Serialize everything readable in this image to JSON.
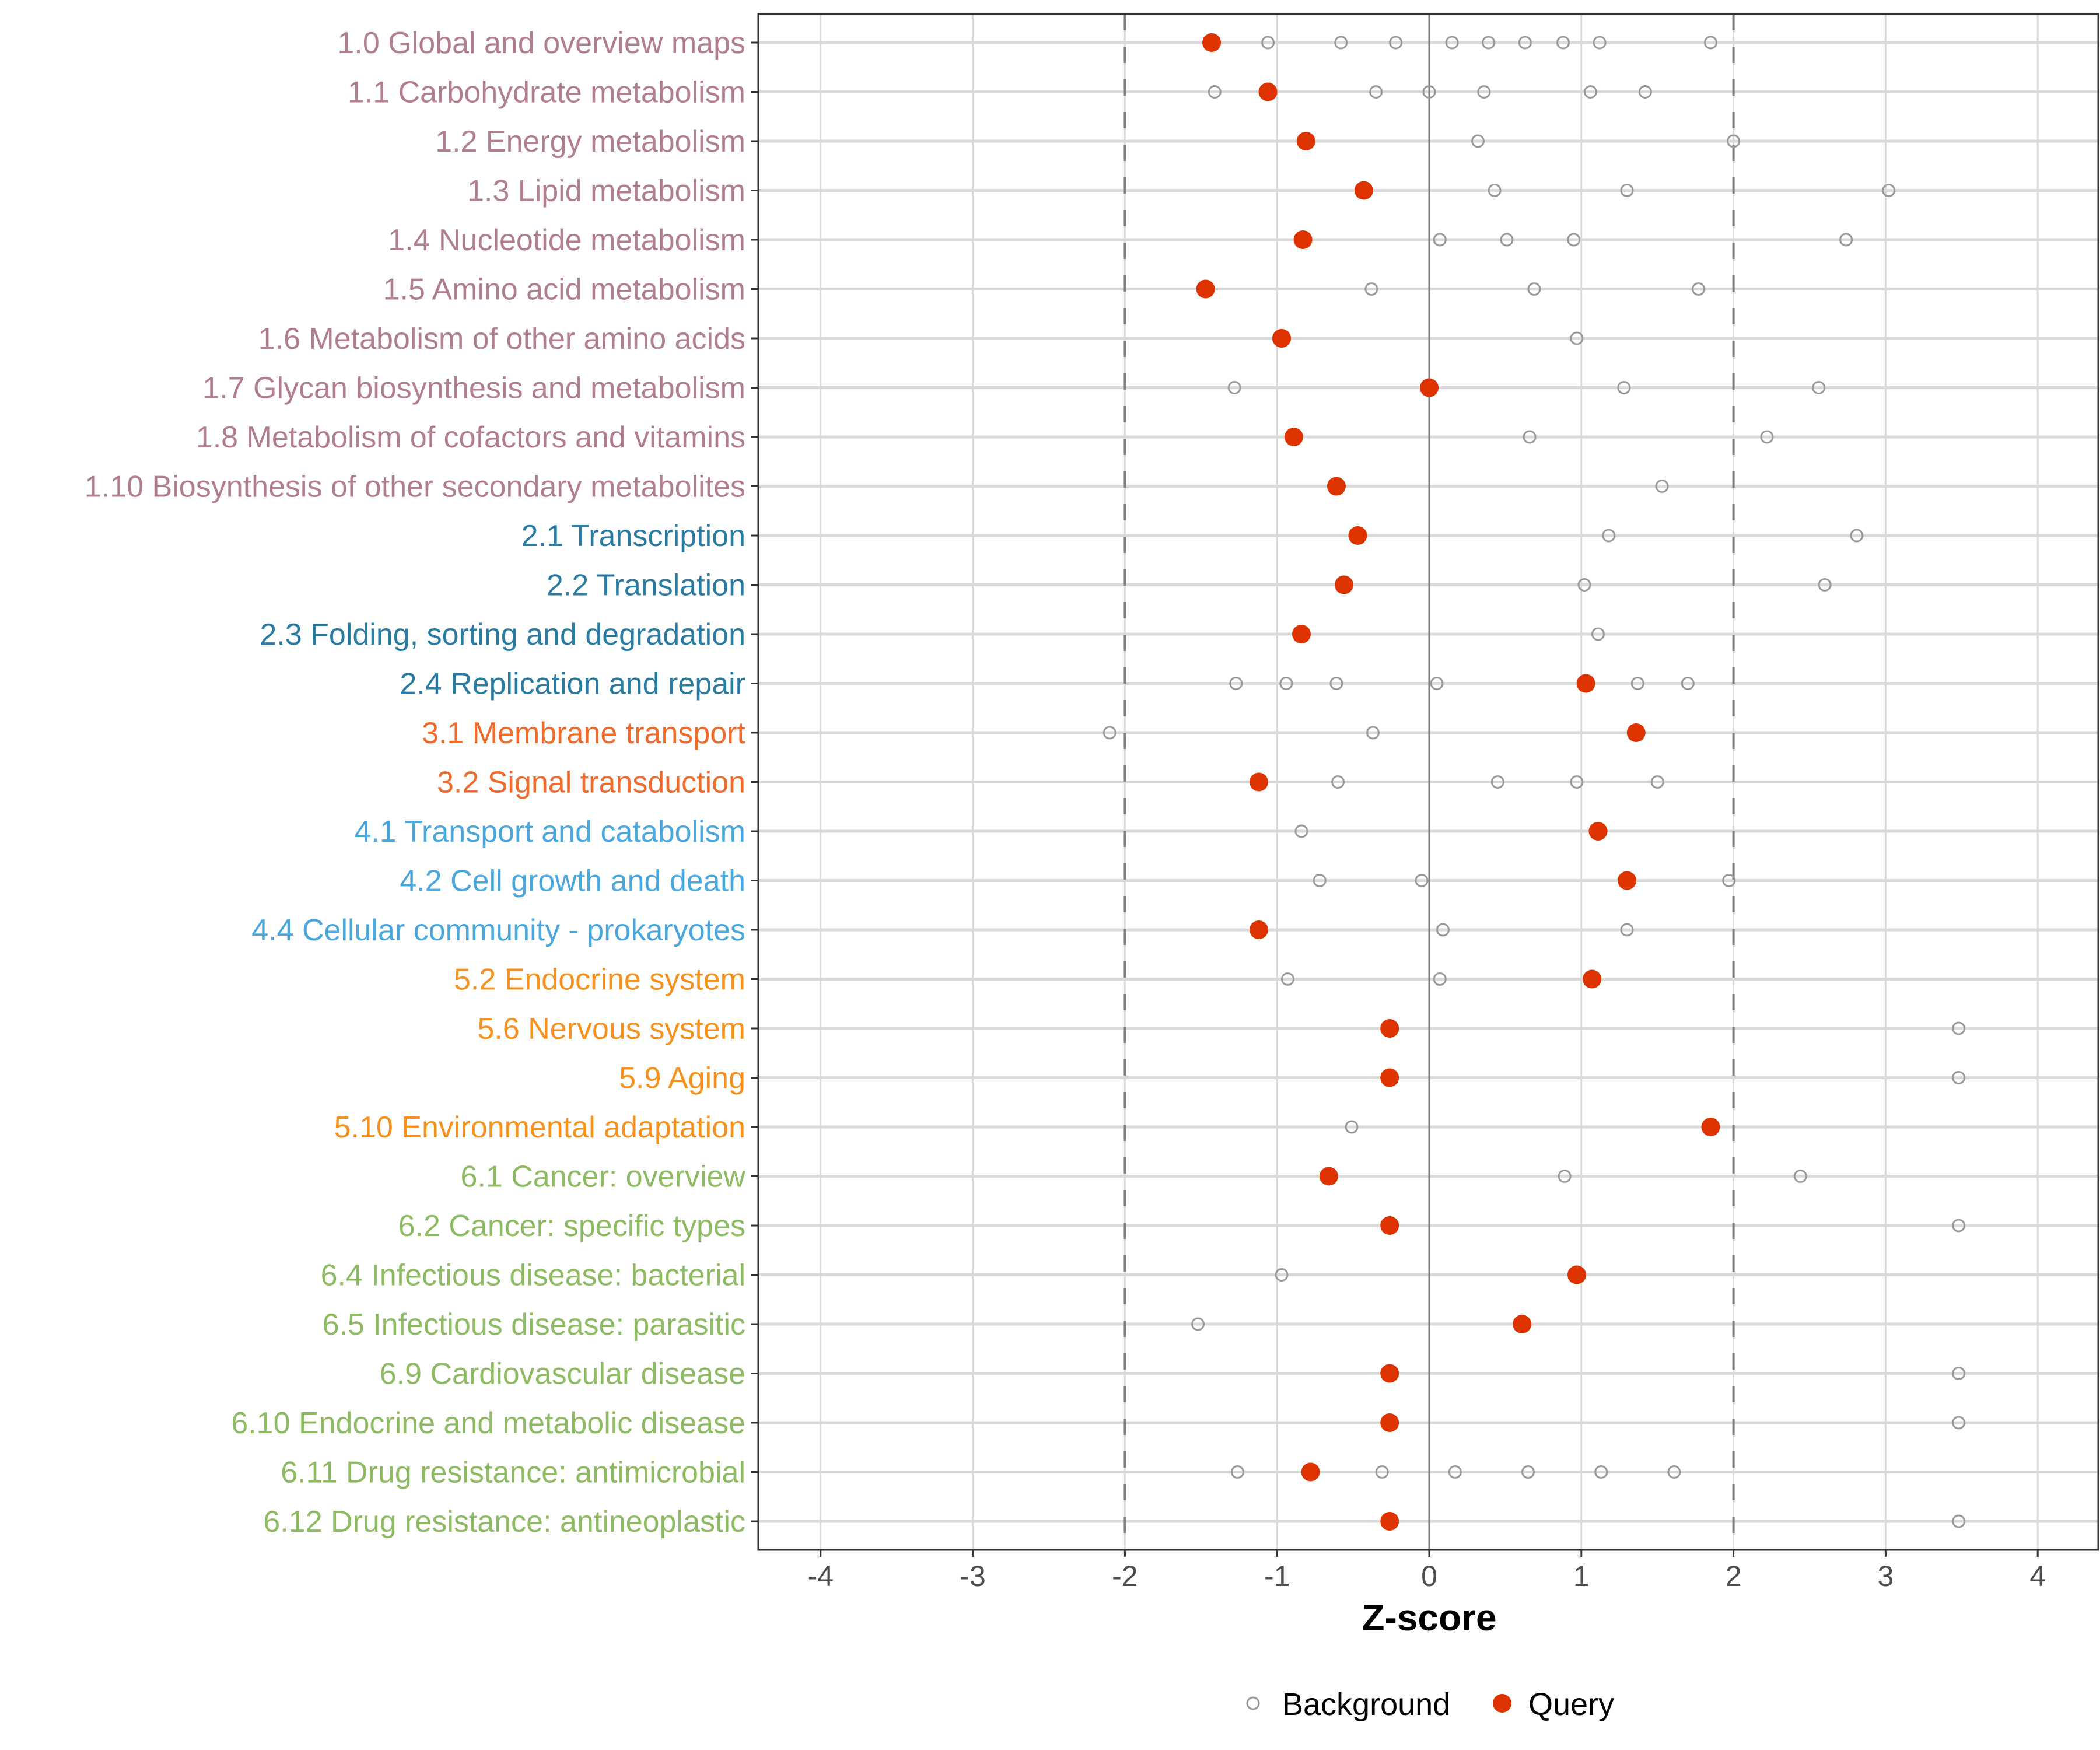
{
  "chart_data": {
    "type": "scatter",
    "title": "",
    "xlabel": "Z-score",
    "ylabel": "",
    "xlim": [
      -4.4,
      4.4
    ],
    "x_ticks": [
      -4,
      -3,
      -2,
      -1,
      0,
      1,
      2,
      3,
      4
    ],
    "x_tick_labels": [
      "-4",
      "-3",
      "-2",
      "-1",
      "0",
      "1",
      "2",
      "3",
      "4"
    ],
    "reference_lines": [
      {
        "x": -2,
        "style": "dashed"
      },
      {
        "x": 0,
        "style": "solid"
      },
      {
        "x": 2,
        "style": "dashed"
      }
    ],
    "grid": true,
    "legend": {
      "placement": "bottom",
      "entries": [
        {
          "name": "Background",
          "marker": "open-circle",
          "color": "#999999"
        },
        {
          "name": "Query",
          "marker": "filled-circle",
          "color": "#dd3300"
        }
      ]
    },
    "group_colors": {
      "1": "#b07f8c",
      "2": "#2a7ba1",
      "3": "#f06b2b",
      "4": "#4aa7dc",
      "5": "#f5911e",
      "6": "#8dba62"
    },
    "categories": [
      {
        "label": "1.0 Global and overview maps",
        "group": "1",
        "query": -1.43,
        "background": [
          -1.06,
          -0.58,
          -0.22,
          0.15,
          0.39,
          0.63,
          0.88,
          1.12,
          1.85
        ]
      },
      {
        "label": "1.1 Carbohydrate metabolism",
        "group": "1",
        "query": -1.06,
        "background": [
          -1.41,
          -0.35,
          0.0,
          0.36,
          1.06,
          1.42
        ]
      },
      {
        "label": "1.2 Energy metabolism",
        "group": "1",
        "query": -0.81,
        "background": [
          0.32,
          2.0
        ]
      },
      {
        "label": "1.3 Lipid metabolism",
        "group": "1",
        "query": -0.43,
        "background": [
          0.43,
          1.3,
          3.02
        ]
      },
      {
        "label": "1.4 Nucleotide metabolism",
        "group": "1",
        "query": -0.83,
        "background": [
          0.07,
          0.51,
          0.95,
          2.74
        ]
      },
      {
        "label": "1.5 Amino acid metabolism",
        "group": "1",
        "query": -1.47,
        "background": [
          -0.38,
          0.69,
          1.77
        ]
      },
      {
        "label": "1.6 Metabolism of other amino acids",
        "group": "1",
        "query": -0.97,
        "background": [
          0.97
        ]
      },
      {
        "label": "1.7 Glycan biosynthesis and metabolism",
        "group": "1",
        "query": 0.0,
        "background": [
          -1.28,
          1.28,
          2.56
        ]
      },
      {
        "label": "1.8 Metabolism of cofactors and vitamins",
        "group": "1",
        "query": -0.89,
        "background": [
          0.66,
          2.22
        ]
      },
      {
        "label": "1.10 Biosynthesis of other secondary metabolites",
        "group": "1",
        "query": -0.61,
        "background": [
          1.53
        ]
      },
      {
        "label": "2.1 Transcription",
        "group": "2",
        "query": -0.47,
        "background": [
          1.18,
          2.81
        ]
      },
      {
        "label": "2.2 Translation",
        "group": "2",
        "query": -0.56,
        "background": [
          1.02,
          2.6
        ]
      },
      {
        "label": "2.3 Folding, sorting and degradation",
        "group": "2",
        "query": -0.84,
        "background": [
          1.11
        ]
      },
      {
        "label": "2.4 Replication and repair",
        "group": "2",
        "query": 1.03,
        "background": [
          -1.27,
          -0.94,
          -0.61,
          0.05,
          1.37,
          1.7
        ]
      },
      {
        "label": "3.1 Membrane transport",
        "group": "3",
        "query": 1.36,
        "background": [
          -2.1,
          -0.37
        ]
      },
      {
        "label": "3.2 Signal transduction",
        "group": "3",
        "query": -1.12,
        "background": [
          -0.6,
          0.45,
          0.97,
          1.5
        ]
      },
      {
        "label": "4.1 Transport and catabolism",
        "group": "4",
        "query": 1.11,
        "background": [
          -0.84
        ]
      },
      {
        "label": "4.2 Cell growth and death",
        "group": "4",
        "query": 1.3,
        "background": [
          -0.72,
          -0.05,
          1.97
        ]
      },
      {
        "label": "4.4 Cellular community - prokaryotes",
        "group": "4",
        "query": -1.12,
        "background": [
          0.09,
          1.3
        ]
      },
      {
        "label": "5.2 Endocrine system",
        "group": "5",
        "query": 1.07,
        "background": [
          -0.93,
          0.07
        ]
      },
      {
        "label": "5.6 Nervous system",
        "group": "5",
        "query": -0.26,
        "background": [
          3.48
        ]
      },
      {
        "label": "5.9 Aging",
        "group": "5",
        "query": -0.26,
        "background": [
          3.48
        ]
      },
      {
        "label": "5.10 Environmental adaptation",
        "group": "5",
        "query": 1.85,
        "background": [
          -0.51
        ]
      },
      {
        "label": "6.1 Cancer: overview",
        "group": "6",
        "query": -0.66,
        "background": [
          0.89,
          2.44
        ]
      },
      {
        "label": "6.2 Cancer: specific types",
        "group": "6",
        "query": -0.26,
        "background": [
          3.48
        ]
      },
      {
        "label": "6.4 Infectious disease: bacterial",
        "group": "6",
        "query": 0.97,
        "background": [
          -0.97
        ]
      },
      {
        "label": "6.5 Infectious disease: parasitic",
        "group": "6",
        "query": 0.61,
        "background": [
          -1.52
        ]
      },
      {
        "label": "6.9 Cardiovascular disease",
        "group": "6",
        "query": -0.26,
        "background": [
          3.48
        ]
      },
      {
        "label": "6.10 Endocrine and metabolic disease",
        "group": "6",
        "query": -0.26,
        "background": [
          3.48
        ]
      },
      {
        "label": "6.11 Drug resistance: antimicrobial",
        "group": "6",
        "query": -0.78,
        "background": [
          -1.26,
          -0.31,
          0.17,
          0.65,
          1.13,
          1.61
        ]
      },
      {
        "label": "6.12 Drug resistance: antineoplastic",
        "group": "6",
        "query": -0.26,
        "background": [
          3.48
        ]
      }
    ]
  }
}
